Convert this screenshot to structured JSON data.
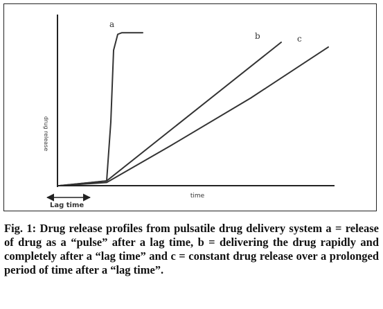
{
  "chart_data": {
    "type": "line",
    "title": "",
    "xlabel": "time",
    "ylabel": "drug release",
    "lag_label": "Lag time",
    "grid": false,
    "xlim": [
      0,
      100
    ],
    "ylim": [
      0,
      100
    ],
    "lag_span": [
      0,
      14
    ],
    "series": [
      {
        "name": "a",
        "x": [
          0,
          17,
          18.5,
          19.5,
          21,
          22.5,
          25,
          30
        ],
        "y": [
          0,
          3,
          40,
          85,
          95,
          96,
          96,
          96
        ]
      },
      {
        "name": "b",
        "x": [
          0,
          17,
          80
        ],
        "y": [
          0,
          3,
          90
        ]
      },
      {
        "name": "c",
        "x": [
          0,
          17,
          40,
          69,
          97
        ],
        "y": [
          0,
          2,
          25,
          55,
          87
        ]
      }
    ]
  },
  "caption": {
    "title": "Fig. 1: Drug release profiles from pulsatile drug delivery system",
    "body": "a = release of drug as a “pulse” after a lag time, b = delivering the drug rapidly and completely after a “lag time” and c = constant drug release over a prolonged period of time after a “lag time”."
  }
}
